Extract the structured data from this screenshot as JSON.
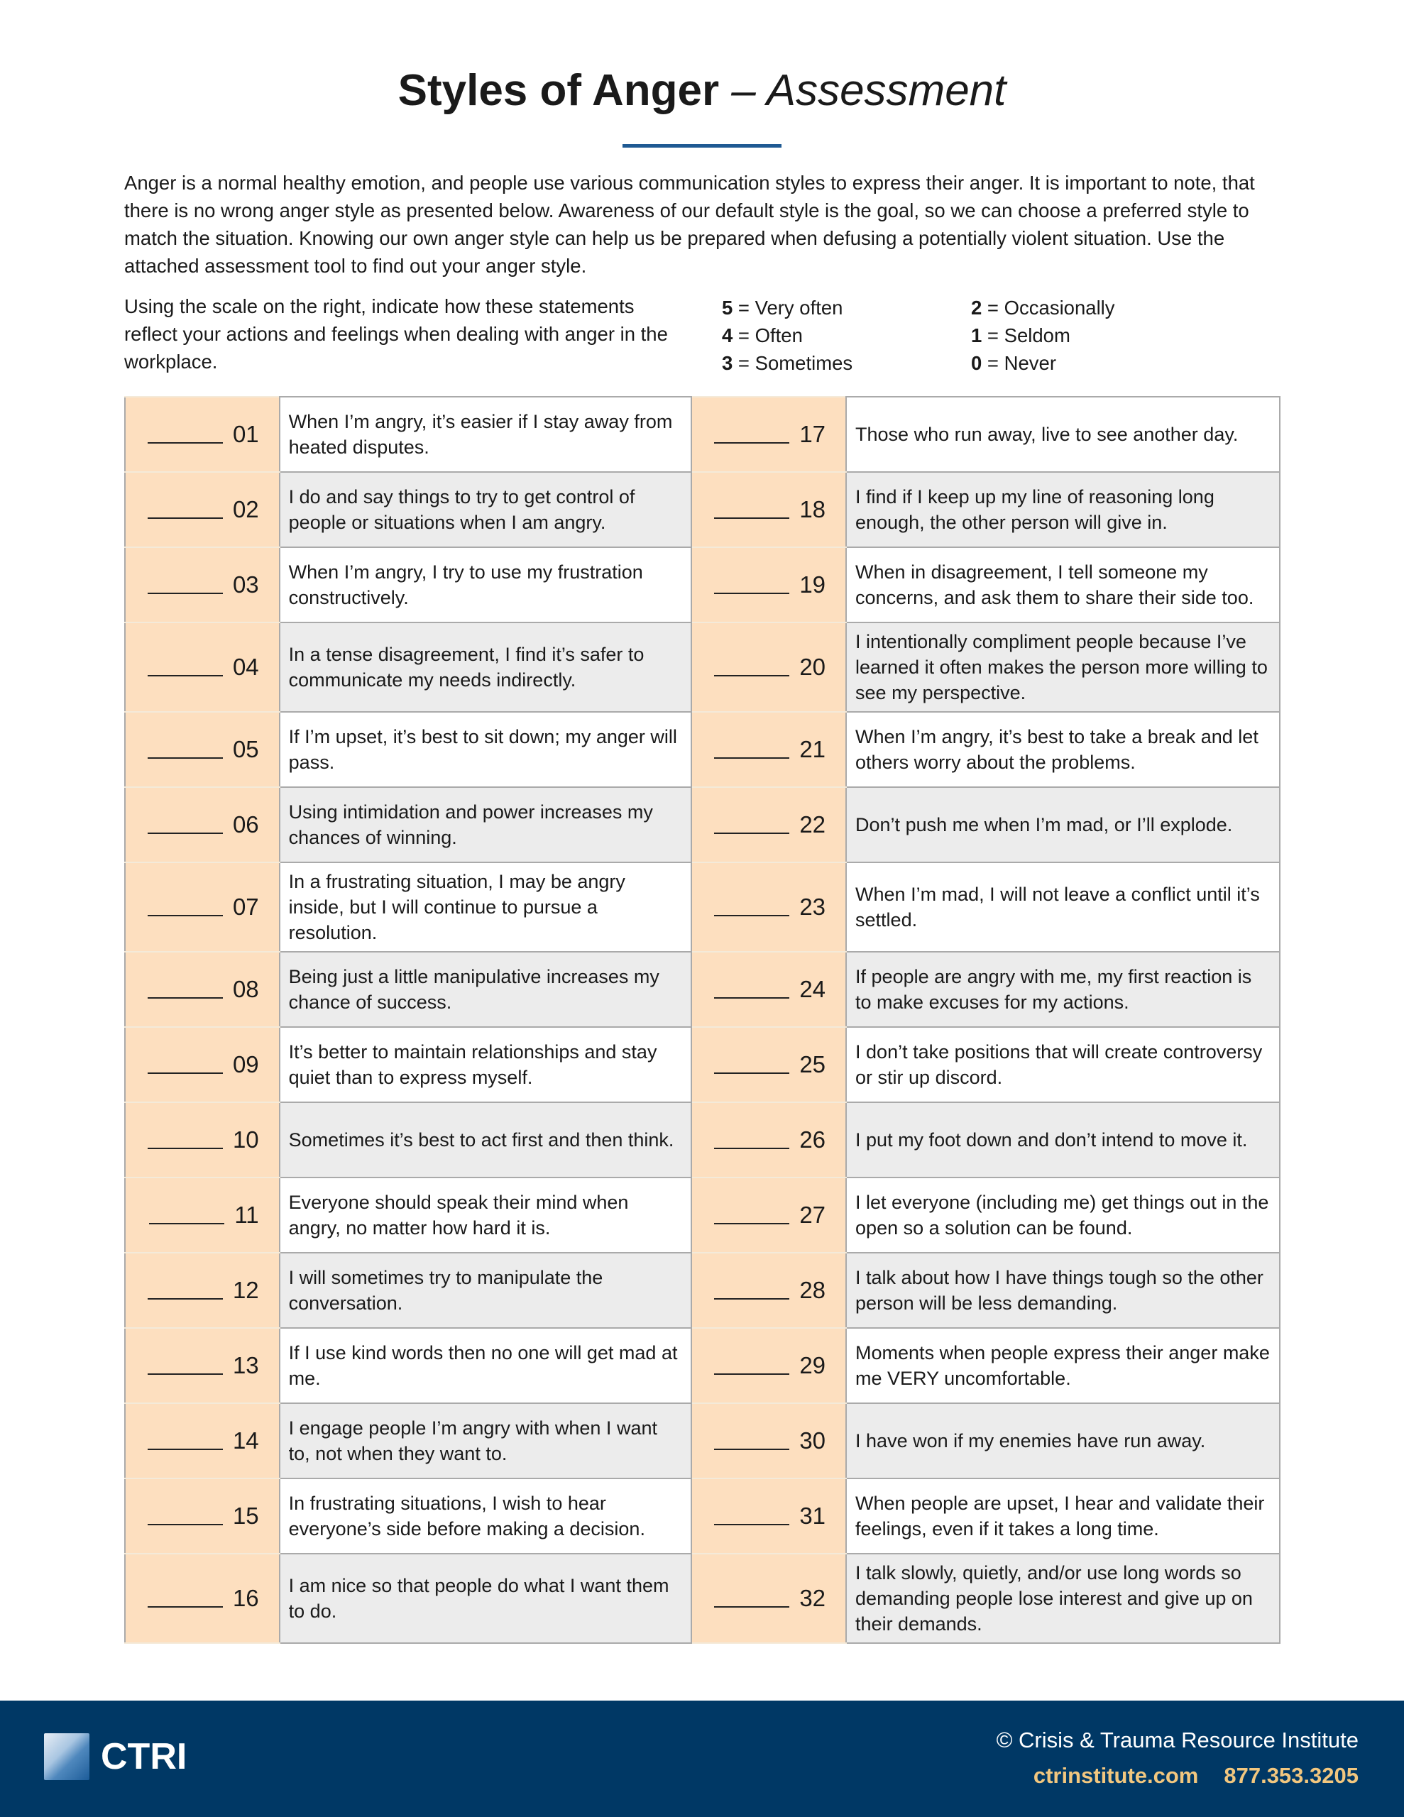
{
  "title": {
    "bold": "Styles of Anger",
    "rest": " – Assessment"
  },
  "intro": "Anger is a normal healthy emotion, and people use various communication styles to express their anger. It is important to note, that there is no wrong anger style as presented below. Awareness of our default style is the goal, so we can choose a preferred style to match the situation. Knowing our own anger style can help us be prepared when defusing a potentially violent situation. Use the attached assessment tool to find out your anger style.",
  "instructions": "Using the scale on the right, indicate how these statements reflect your actions and feelings when dealing with anger in the workplace.",
  "scale": [
    {
      "n": "5",
      "label": " = Very often"
    },
    {
      "n": "4",
      "label": " = Often"
    },
    {
      "n": "3",
      "label": " = Sometimes"
    },
    {
      "n": "2",
      "label": " = Occasionally"
    },
    {
      "n": "1",
      "label": " = Seldom"
    },
    {
      "n": "0",
      "label": " = Never"
    }
  ],
  "rows": [
    [
      {
        "n": "01",
        "t": "When I’m angry, it’s easier if I stay away from heated disputes."
      },
      {
        "n": "17",
        "t": "Those who run away, live to see another day."
      }
    ],
    [
      {
        "n": "02",
        "t": "I do and say things to try to get control of people or situations when I am angry."
      },
      {
        "n": "18",
        "t": "I find if I keep up my line of reasoning long enough, the other person will give in."
      }
    ],
    [
      {
        "n": "03",
        "t": "When I’m angry, I try to use my frustration constructively."
      },
      {
        "n": "19",
        "t": "When in disagreement, I tell someone my concerns, and ask them to share their side too."
      }
    ],
    [
      {
        "n": "04",
        "t": "In a tense disagreement, I find it’s safer to communicate my needs indirectly."
      },
      {
        "n": "20",
        "t": "I intentionally compliment people because I’ve learned it often makes the person more willing to see my perspective."
      }
    ],
    [
      {
        "n": "05",
        "t": "If I’m upset, it’s best to sit down; my anger will pass."
      },
      {
        "n": "21",
        "t": "When I’m angry, it’s best to take a break and let others worry about the problems."
      }
    ],
    [
      {
        "n": "06",
        "t": "Using intimidation and power increases my chances of winning."
      },
      {
        "n": "22",
        "t": "Don’t push me when I’m mad, or I’ll explode."
      }
    ],
    [
      {
        "n": "07",
        "t": "In a frustrating situation, I may be angry inside, but I will continue to pursue a resolution."
      },
      {
        "n": "23",
        "t": "When I’m mad, I will not leave a conflict until it’s settled."
      }
    ],
    [
      {
        "n": "08",
        "t": "Being just a little manipulative increases my chance of success."
      },
      {
        "n": "24",
        "t": "If people are angry with me, my first reaction is to make excuses for my actions."
      }
    ],
    [
      {
        "n": "09",
        "t": "It’s better to maintain relationships and stay quiet than to express myself."
      },
      {
        "n": "25",
        "t": "I don’t take positions that will create controversy or stir up discord."
      }
    ],
    [
      {
        "n": "10",
        "t": "Sometimes it’s best to act first and then think."
      },
      {
        "n": "26",
        "t": "I put my foot down and don’t intend to move it."
      }
    ],
    [
      {
        "n": "11",
        "t": "Everyone should speak their mind when angry, no matter how hard it is."
      },
      {
        "n": "27",
        "t": "I let everyone (including me) get things out in the open so a solution can be found."
      }
    ],
    [
      {
        "n": "12",
        "t": "I will sometimes try to manipulate the conversation."
      },
      {
        "n": "28",
        "t": "I talk about how I have things tough so the other person will be less demanding."
      }
    ],
    [
      {
        "n": "13",
        "t": "If I use kind words then no one will get mad at me."
      },
      {
        "n": "29",
        "t": "Moments when people express their anger make me VERY uncomfortable."
      }
    ],
    [
      {
        "n": "14",
        "t": "I engage people I’m angry with when I want to, not when they want to."
      },
      {
        "n": "30",
        "t": "I have won if my enemies have run away."
      }
    ],
    [
      {
        "n": "15",
        "t": "In frustrating situations, I wish to hear everyone’s side before making a decision."
      },
      {
        "n": "31",
        "t": "When people are upset, I hear and validate their feelings, even if it takes a long time."
      }
    ],
    [
      {
        "n": "16",
        "t": "I am nice so that people do what I want them to do."
      },
      {
        "n": "32",
        "t": "I talk slowly, quietly, and/or use long words so demanding people lose interest and give up on their demands."
      }
    ]
  ],
  "footer": {
    "logo": "CTRI",
    "copyright": "© Crisis & Trauma Resource Institute",
    "website": "ctrinstitute.com",
    "phone": "877.353.3205"
  },
  "colors": {
    "accent": "#1f5a93",
    "number_cell": "#fddfbf",
    "footer": "#003865",
    "contact": "#f2c77f"
  }
}
